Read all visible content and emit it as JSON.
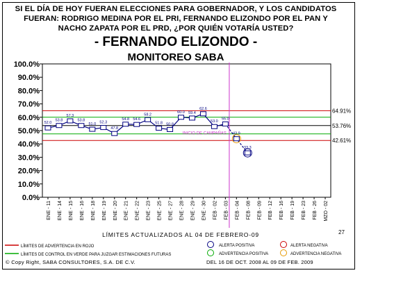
{
  "header": {
    "question_line1": "SI EL DÍA DE HOY FUERAN ELECCIONES PARA GOBERNADOR, Y LOS CANDIDATOS",
    "question_line2": "FUERAN: RODRIGO MEDINA POR EL PRI, FERNANDO ELIZONDO POR EL PAN Y",
    "question_line3": "NACHO ZAPATA POR EL PRD, ¿POR QUIÉN VOTARÍA USTED?",
    "candidate": "- FERNANDO ELIZONDO -",
    "subtitle": "MONITOREO SABA"
  },
  "chart_data": {
    "type": "line",
    "categories": [
      "ENE - 11",
      "ENE - 14",
      "ENE - 15",
      "ENE - 16",
      "ENE - 18",
      "ENE - 19",
      "ENE - 20",
      "ENE - 21",
      "ENE - 22",
      "ENE - 23",
      "ENE - 25",
      "ENE - 27",
      "ENE - 28",
      "ENE - 29",
      "ENE - 30",
      "FEB - 02",
      "FEB - 03",
      "FEB - 04",
      "FEB - 08",
      "FEB - 09",
      "FEB - 12",
      "FEB - 16",
      "FEB - 19",
      "FEB - 23",
      "FEB - 26",
      "MZO - 02"
    ],
    "series": [
      {
        "values": [
          52.0,
          53.8,
          57.3,
          53.8,
          51.0,
          52.3,
          47.8,
          54.8,
          54.6,
          58.2,
          51.8,
          50.8,
          60.0,
          59.4,
          62.6,
          53.0,
          55.0,
          43.9,
          33.3,
          null,
          null,
          null,
          null,
          null,
          null,
          null
        ],
        "data_labels": [
          "52.0",
          "53.8",
          "57.3",
          "53.8",
          "51.0",
          "52.3",
          "47.8",
          "54.8",
          "54.6",
          "58.2",
          "51.8",
          "50.8",
          "60.0",
          "59.4",
          "62.6",
          "53.0",
          "55.0",
          "43.9",
          "33.3"
        ],
        "color": "#000080"
      }
    ],
    "reference_lines": [
      {
        "label": "64.91%",
        "value": 64.91,
        "color": "#cc0000"
      },
      {
        "label": "53.76%",
        "value": 53.76,
        "color": "#000000"
      },
      {
        "label": "42.61%",
        "value": 42.61,
        "color": "#cc0000"
      },
      {
        "value": 60.0,
        "color": "#00aa00"
      },
      {
        "value": 47.5,
        "color": "#00aa00"
      }
    ],
    "vertical_marker": {
      "category": "FEB - 03",
      "color": "#cc33cc"
    },
    "annotation": "INICIO DE CAMPAÑAS",
    "y_ticks": [
      "0.0%",
      "10.0%",
      "20.0%",
      "30.0%",
      "40.0%",
      "50.0%",
      "60.0%",
      "70.0%",
      "80.0%",
      "90.0%",
      "100.0%"
    ],
    "ylim": [
      0,
      100
    ],
    "grid": false
  },
  "footer": {
    "page_number": "27",
    "update_note": "LÍMITES ACTUALIZADOS AL 04 DE FEBRERO-09",
    "legend_red": "LÍMITES DE ADVERTENCIA EN ROJO",
    "legend_green": "LÍMITES DE CONTROL EN VERDE PARA JUZGAR ESTIMACIONES FUTURAS",
    "alert_positive": "ALERTA POSITIVA",
    "alert_negative": "ALERTA NEGATIVA",
    "warn_positive": "ADVERTENCIA POSITIVA",
    "warn_negative": "ADVERTENCIA NEGATIVA",
    "copyright": "© Copy Right, SABA CONSULTORES, S.A. DE C.V.",
    "date_range": "DEL 16 DE OCT. 2008 AL 09 DE FEB. 2009"
  },
  "colors": {
    "series": "#000080",
    "warning": "#cc0000",
    "control": "#00aa00",
    "marker": "#cc33cc",
    "alert_positive": "#000080",
    "alert_negative": "#cc0000",
    "warn_positive": "#00aa00",
    "warn_negative": "#e69900"
  }
}
